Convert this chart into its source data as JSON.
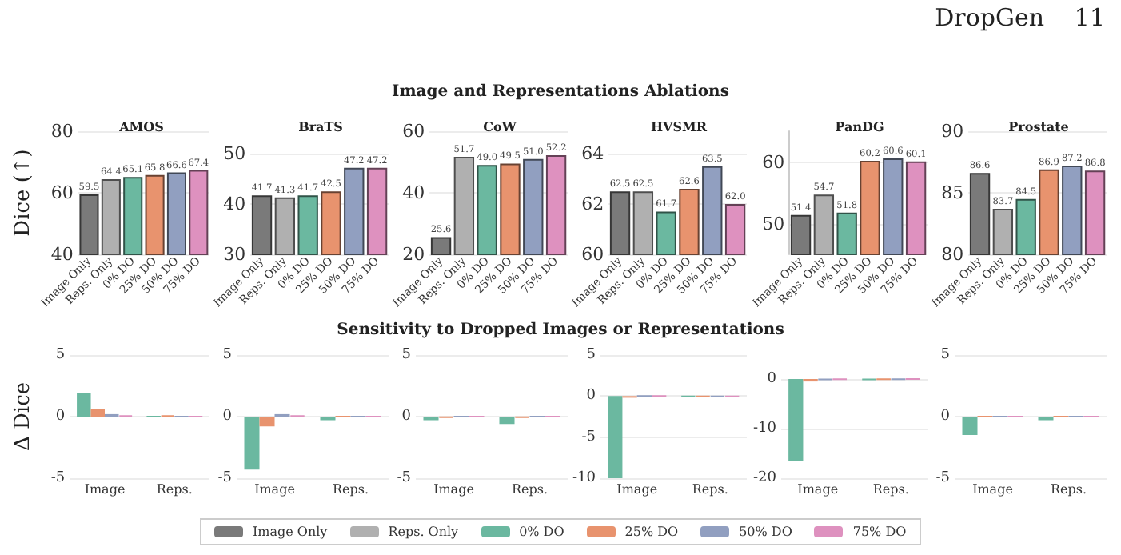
{
  "chart_data": [
    {
      "type": "bar",
      "title": "AMOS",
      "ylabel": "Dice (↑)",
      "annotations": [
        "DropGen",
        "11",
        "Image and Representations Ablations"
      ],
      "legend": "bottom",
      "grid": "y",
      "categories": [
        "Image Only",
        "Reps. Only",
        "0% DO",
        "25% DO",
        "50% DO",
        "75% DO"
      ],
      "ylim": [
        40,
        80
      ],
      "yticks": [
        40,
        60,
        80
      ],
      "series": [
        {
          "name": "Image Only",
          "color": "#7a7a7a",
          "values": [
            59.5,
            null,
            null,
            null,
            null,
            null
          ],
          "value_labels": [
            "59.5",
            null,
            null,
            null,
            null,
            null
          ]
        },
        {
          "name": "Reps. Only",
          "color": "#b0b0b0",
          "values": [
            null,
            64.4,
            null,
            null,
            null,
            null
          ],
          "value_labels": [
            null,
            "64.4",
            null,
            null,
            null,
            null
          ]
        },
        {
          "name": "0% DO",
          "color": "#6bb8a0",
          "values": [
            null,
            null,
            65.1,
            null,
            null,
            null
          ],
          "value_labels": [
            null,
            null,
            "65.1",
            null,
            null,
            null
          ]
        },
        {
          "name": "25% DO",
          "color": "#e8936e",
          "values": [
            null,
            null,
            null,
            65.8,
            null,
            null
          ],
          "value_labels": [
            null,
            null,
            null,
            "65.8",
            null,
            null
          ]
        },
        {
          "name": "50% DO",
          "color": "#919fc0",
          "values": [
            null,
            null,
            null,
            null,
            66.6,
            null
          ],
          "value_labels": [
            null,
            null,
            null,
            null,
            "66.6",
            null
          ]
        },
        {
          "name": "75% DO",
          "color": "#de91bf",
          "values": [
            null,
            null,
            null,
            null,
            null,
            67.4
          ],
          "value_labels": [
            null,
            null,
            null,
            null,
            null,
            "67.4"
          ]
        }
      ]
    },
    {
      "type": "bar",
      "title": "BraTS",
      "legend": "bottom",
      "grid": "y",
      "categories": [
        "Image Only",
        "Reps. Only",
        "0% DO",
        "25% DO",
        "50% DO",
        "75% DO"
      ],
      "ylim": [
        30,
        50
      ],
      "yticks": [
        30,
        40,
        50
      ],
      "series": [
        {
          "name": "Image Only",
          "color": "#7a7a7a",
          "values": [
            41.7,
            null,
            null,
            null,
            null,
            null
          ],
          "value_labels": [
            "41.7",
            null,
            null,
            null,
            null,
            null
          ]
        },
        {
          "name": "Reps. Only",
          "color": "#b0b0b0",
          "values": [
            null,
            41.3,
            null,
            null,
            null,
            null
          ],
          "value_labels": [
            null,
            "41.3",
            null,
            null,
            null,
            null
          ]
        },
        {
          "name": "0% DO",
          "color": "#6bb8a0",
          "values": [
            null,
            null,
            41.7,
            null,
            null,
            null
          ],
          "value_labels": [
            null,
            null,
            "41.7",
            null,
            null,
            null
          ]
        },
        {
          "name": "25% DO",
          "color": "#e8936e",
          "values": [
            null,
            null,
            null,
            42.5,
            null,
            null
          ],
          "value_labels": [
            null,
            null,
            null,
            "42.5",
            null,
            null
          ]
        },
        {
          "name": "50% DO",
          "color": "#919fc0",
          "values": [
            null,
            null,
            null,
            null,
            47.2,
            null
          ],
          "value_labels": [
            null,
            null,
            null,
            null,
            "47.2",
            null
          ]
        },
        {
          "name": "75% DO",
          "color": "#de91bf",
          "values": [
            null,
            null,
            null,
            null,
            null,
            47.2
          ],
          "value_labels": [
            null,
            null,
            null,
            null,
            null,
            "47.2"
          ]
        }
      ]
    },
    {
      "type": "bar",
      "title": "CoW",
      "legend": "bottom",
      "grid": "y",
      "categories": [
        "Image Only",
        "Reps. Only",
        "0% DO",
        "25% DO",
        "50% DO",
        "75% DO"
      ],
      "ylim": [
        20,
        60
      ],
      "yticks": [
        20,
        40,
        60
      ],
      "series": [
        {
          "name": "Image Only",
          "color": "#7a7a7a",
          "values": [
            25.6,
            null,
            null,
            null,
            null,
            null
          ],
          "value_labels": [
            "25.6",
            null,
            null,
            null,
            null,
            null
          ]
        },
        {
          "name": "Reps. Only",
          "color": "#b0b0b0",
          "values": [
            null,
            51.7,
            null,
            null,
            null,
            null
          ],
          "value_labels": [
            null,
            "51.7",
            null,
            null,
            null,
            null
          ]
        },
        {
          "name": "0% DO",
          "color": "#6bb8a0",
          "values": [
            null,
            null,
            49.0,
            null,
            null,
            null
          ],
          "value_labels": [
            null,
            null,
            "49.0",
            null,
            null,
            null
          ]
        },
        {
          "name": "25% DO",
          "color": "#e8936e",
          "values": [
            null,
            null,
            null,
            49.5,
            null,
            null
          ],
          "value_labels": [
            null,
            null,
            null,
            "49.5",
            null,
            null
          ]
        },
        {
          "name": "50% DO",
          "color": "#919fc0",
          "values": [
            null,
            null,
            null,
            null,
            51.0,
            null
          ],
          "value_labels": [
            null,
            null,
            null,
            null,
            "51.0",
            null
          ]
        },
        {
          "name": "75% DO",
          "color": "#de91bf",
          "values": [
            null,
            null,
            null,
            null,
            null,
            52.2
          ],
          "value_labels": [
            null,
            null,
            null,
            null,
            null,
            "52.2"
          ]
        }
      ]
    },
    {
      "type": "bar",
      "title": "HVSMR",
      "legend": "bottom",
      "grid": "y",
      "categories": [
        "Image Only",
        "Reps. Only",
        "0% DO",
        "25% DO",
        "50% DO",
        "75% DO"
      ],
      "ylim": [
        60,
        64
      ],
      "yticks": [
        60,
        62,
        64
      ],
      "series": [
        {
          "name": "Image Only",
          "color": "#7a7a7a",
          "values": [
            62.5,
            null,
            null,
            null,
            null,
            null
          ],
          "value_labels": [
            "62.5",
            null,
            null,
            null,
            null,
            null
          ]
        },
        {
          "name": "Reps. Only",
          "color": "#b0b0b0",
          "values": [
            null,
            62.5,
            null,
            null,
            null,
            null
          ],
          "value_labels": [
            null,
            "62.5",
            null,
            null,
            null,
            null
          ]
        },
        {
          "name": "0% DO",
          "color": "#6bb8a0",
          "values": [
            null,
            null,
            61.7,
            null,
            null,
            null
          ],
          "value_labels": [
            null,
            null,
            "61.7",
            null,
            null,
            null
          ]
        },
        {
          "name": "25% DO",
          "color": "#e8936e",
          "values": [
            null,
            null,
            null,
            62.6,
            null,
            null
          ],
          "value_labels": [
            null,
            null,
            null,
            "62.6",
            null,
            null
          ]
        },
        {
          "name": "50% DO",
          "color": "#919fc0",
          "values": [
            null,
            null,
            null,
            null,
            63.5,
            null
          ],
          "value_labels": [
            null,
            null,
            null,
            null,
            "63.5",
            null
          ]
        },
        {
          "name": "75% DO",
          "color": "#de91bf",
          "values": [
            null,
            null,
            null,
            null,
            null,
            62.0
          ],
          "value_labels": [
            null,
            null,
            null,
            null,
            null,
            "62.0"
          ]
        }
      ]
    },
    {
      "type": "bar",
      "title": "PanDG",
      "legend": "bottom",
      "grid": "y",
      "categories": [
        "Image Only",
        "Reps. Only",
        "0% DO",
        "25% DO",
        "50% DO",
        "75% DO"
      ],
      "ylim": [
        45,
        65
      ],
      "yticks": [
        50,
        60
      ],
      "series": [
        {
          "name": "Image Only",
          "color": "#7a7a7a",
          "values": [
            51.4,
            null,
            null,
            null,
            null,
            null
          ],
          "value_labels": [
            "51.4",
            null,
            null,
            null,
            null,
            null
          ]
        },
        {
          "name": "Reps. Only",
          "color": "#b0b0b0",
          "values": [
            null,
            54.7,
            null,
            null,
            null,
            null
          ],
          "value_labels": [
            null,
            "54.7",
            null,
            null,
            null,
            null
          ]
        },
        {
          "name": "0% DO",
          "color": "#6bb8a0",
          "values": [
            null,
            null,
            51.8,
            null,
            null,
            null
          ],
          "value_labels": [
            null,
            null,
            "51.8",
            null,
            null,
            null
          ]
        },
        {
          "name": "25% DO",
          "color": "#e8936e",
          "values": [
            null,
            null,
            null,
            60.2,
            null,
            null
          ],
          "value_labels": [
            null,
            null,
            null,
            "60.2",
            null,
            null
          ]
        },
        {
          "name": "50% DO",
          "color": "#919fc0",
          "values": [
            null,
            null,
            null,
            null,
            60.6,
            null
          ],
          "value_labels": [
            null,
            null,
            null,
            null,
            "60.6",
            null
          ]
        },
        {
          "name": "75% DO",
          "color": "#de91bf",
          "values": [
            null,
            null,
            null,
            null,
            null,
            60.1
          ],
          "value_labels": [
            null,
            null,
            null,
            null,
            null,
            "60.1"
          ]
        }
      ]
    },
    {
      "type": "bar",
      "title": "Prostate",
      "legend": "bottom",
      "grid": "y",
      "categories": [
        "Image Only",
        "Reps. Only",
        "0% DO",
        "25% DO",
        "50% DO",
        "75% DO"
      ],
      "ylim": [
        80,
        90
      ],
      "yticks": [
        80,
        85,
        90
      ],
      "series": [
        {
          "name": "Image Only",
          "color": "#7a7a7a",
          "values": [
            86.6,
            null,
            null,
            null,
            null,
            null
          ],
          "value_labels": [
            "86.6",
            null,
            null,
            null,
            null,
            null
          ]
        },
        {
          "name": "Reps. Only",
          "color": "#b0b0b0",
          "values": [
            null,
            83.7,
            null,
            null,
            null,
            null
          ],
          "value_labels": [
            null,
            "83.7",
            null,
            null,
            null,
            null
          ]
        },
        {
          "name": "0% DO",
          "color": "#6bb8a0",
          "values": [
            null,
            null,
            84.5,
            null,
            null,
            null
          ],
          "value_labels": [
            null,
            null,
            "84.5",
            null,
            null,
            null
          ]
        },
        {
          "name": "25% DO",
          "color": "#e8936e",
          "values": [
            null,
            null,
            null,
            86.9,
            null,
            null
          ],
          "value_labels": [
            null,
            null,
            null,
            "86.9",
            null,
            null
          ]
        },
        {
          "name": "50% DO",
          "color": "#919fc0",
          "values": [
            null,
            null,
            null,
            null,
            87.2,
            null
          ],
          "value_labels": [
            null,
            null,
            null,
            null,
            "87.2",
            null
          ]
        },
        {
          "name": "75% DO",
          "color": "#de91bf",
          "values": [
            null,
            null,
            null,
            null,
            null,
            86.8
          ],
          "value_labels": [
            null,
            null,
            null,
            null,
            null,
            "86.8"
          ]
        }
      ]
    },
    {
      "type": "bar",
      "ylabel": "Δ Dice",
      "annotations": [
        "Sensitivity to Dropped Images or Representations"
      ],
      "legend": "bottom",
      "grid": "y",
      "categories": [
        "Image",
        "Reps."
      ],
      "ylim": [
        -5,
        5
      ],
      "yticks": [
        -5,
        0,
        5
      ],
      "series": [
        {
          "name": "0% DO",
          "color": "#6bb8a0",
          "values": [
            1.9,
            0.0
          ]
        },
        {
          "name": "25% DO",
          "color": "#e8936e",
          "values": [
            0.6,
            0.1
          ]
        },
        {
          "name": "50% DO",
          "color": "#919fc0",
          "values": [
            0.2,
            0.0
          ]
        },
        {
          "name": "75% DO",
          "color": "#de91bf",
          "values": [
            0.1,
            0.0
          ]
        }
      ]
    },
    {
      "type": "bar",
      "legend": "bottom",
      "grid": "y",
      "categories": [
        "Image",
        "Reps."
      ],
      "ylim": [
        -5,
        5
      ],
      "yticks": [
        -5,
        0,
        5
      ],
      "series": [
        {
          "name": "0% DO",
          "color": "#6bb8a0",
          "values": [
            -4.3,
            -0.3
          ]
        },
        {
          "name": "25% DO",
          "color": "#e8936e",
          "values": [
            -0.8,
            0.0
          ]
        },
        {
          "name": "50% DO",
          "color": "#919fc0",
          "values": [
            0.2,
            0.0
          ]
        },
        {
          "name": "75% DO",
          "color": "#de91bf",
          "values": [
            0.1,
            0.0
          ]
        }
      ]
    },
    {
      "type": "bar",
      "legend": "bottom",
      "grid": "y",
      "categories": [
        "Image",
        "Reps."
      ],
      "ylim": [
        -5,
        5
      ],
      "yticks": [
        -5,
        0,
        5
      ],
      "series": [
        {
          "name": "0% DO",
          "color": "#6bb8a0",
          "values": [
            -0.3,
            -0.6
          ]
        },
        {
          "name": "25% DO",
          "color": "#e8936e",
          "values": [
            -0.1,
            -0.1
          ]
        },
        {
          "name": "50% DO",
          "color": "#919fc0",
          "values": [
            0.0,
            0.0
          ]
        },
        {
          "name": "75% DO",
          "color": "#de91bf",
          "values": [
            0.0,
            0.0
          ]
        }
      ]
    },
    {
      "type": "bar",
      "legend": "bottom",
      "grid": "y",
      "categories": [
        "Image",
        "Reps."
      ],
      "ylim": [
        -10,
        5
      ],
      "yticks": [
        -10,
        -5,
        0,
        5
      ],
      "series": [
        {
          "name": "0% DO",
          "color": "#6bb8a0",
          "values": [
            -10.0,
            -0.1
          ]
        },
        {
          "name": "25% DO",
          "color": "#e8936e",
          "values": [
            -0.2,
            -0.1
          ]
        },
        {
          "name": "50% DO",
          "color": "#919fc0",
          "values": [
            0.0,
            -0.1
          ]
        },
        {
          "name": "75% DO",
          "color": "#de91bf",
          "values": [
            0.0,
            -0.1
          ]
        }
      ]
    },
    {
      "type": "bar",
      "legend": "bottom",
      "grid": "y",
      "categories": [
        "Image",
        "Reps."
      ],
      "ylim": [
        -20,
        0
      ],
      "yticks": [
        -20,
        -10,
        0
      ],
      "series": [
        {
          "name": "0% DO",
          "color": "#6bb8a0",
          "values": [
            -16.5,
            -0.2
          ]
        },
        {
          "name": "25% DO",
          "color": "#e8936e",
          "values": [
            -0.5,
            -0.1
          ]
        },
        {
          "name": "50% DO",
          "color": "#919fc0",
          "values": [
            -0.2,
            -0.1
          ]
        },
        {
          "name": "75% DO",
          "color": "#de91bf",
          "values": [
            -0.1,
            0.0
          ]
        }
      ]
    },
    {
      "type": "bar",
      "legend": "bottom",
      "grid": "y",
      "categories": [
        "Image",
        "Reps."
      ],
      "ylim": [
        -5,
        5
      ],
      "yticks": [
        -5,
        0,
        5
      ],
      "series": [
        {
          "name": "0% DO",
          "color": "#6bb8a0",
          "values": [
            -1.5,
            -0.3
          ]
        },
        {
          "name": "25% DO",
          "color": "#e8936e",
          "values": [
            0.0,
            0.0
          ]
        },
        {
          "name": "50% DO",
          "color": "#919fc0",
          "values": [
            0.0,
            0.0
          ]
        },
        {
          "name": "75% DO",
          "color": "#de91bf",
          "values": [
            0.0,
            0.0
          ]
        }
      ]
    }
  ]
}
